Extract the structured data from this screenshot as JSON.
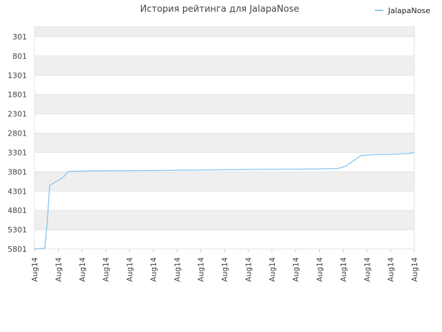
{
  "chart_data": {
    "type": "line",
    "title": "История рейтинга для JalapaNose",
    "xlabel": "",
    "ylabel": "",
    "y_inverted": true,
    "ylim": [
      5801,
      51
    ],
    "y_ticks": [
      301,
      801,
      1301,
      1801,
      2301,
      2801,
      3301,
      3801,
      4301,
      4801,
      5301,
      5801
    ],
    "x_ticks": [
      "Aug14",
      "Aug14",
      "Aug14",
      "Aug14",
      "Aug14",
      "Aug14",
      "Aug14",
      "Aug14",
      "Aug14",
      "Aug14",
      "Aug14",
      "Aug14",
      "Aug14",
      "Aug14",
      "Aug14",
      "Aug14",
      "Aug14"
    ],
    "grid": true,
    "legend_position": "top-right",
    "series_color": "#8ec6ec",
    "series": [
      {
        "name": "JalapaNose",
        "x": [
          0,
          0.027,
          0.033,
          0.04,
          0.075,
          0.083,
          0.088,
          0.1,
          0.16,
          0.3,
          0.44,
          0.58,
          0.72,
          0.78,
          0.8,
          0.82,
          0.86,
          0.9,
          0.94,
          0.96,
          0.985,
          1.0
        ],
        "values": [
          5801,
          5780,
          5150,
          4150,
          3950,
          3860,
          3800,
          3790,
          3775,
          3770,
          3755,
          3740,
          3730,
          3722,
          3715,
          3650,
          3380,
          3350,
          3350,
          3340,
          3330,
          3300
        ]
      }
    ]
  }
}
